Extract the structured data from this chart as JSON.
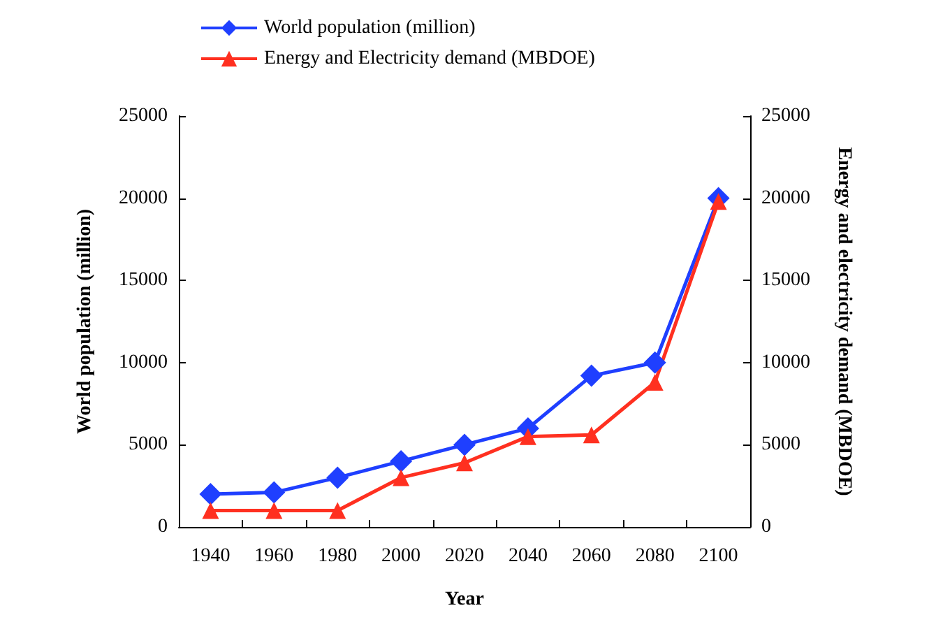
{
  "chart_data": {
    "type": "line",
    "xlabel": "Year",
    "ylabel": "World population (million)",
    "y2label": "Energy and electricity demand (MBDOE)",
    "categories": [
      "1940",
      "1960",
      "1980",
      "2000",
      "2020",
      "2040",
      "2060",
      "2080",
      "2100"
    ],
    "series": [
      {
        "name": "World population (million)",
        "color": "#1f3fff",
        "marker": "diamond",
        "values": [
          2000,
          2100,
          3000,
          4000,
          5000,
          6000,
          9200,
          10000,
          20000
        ]
      },
      {
        "name": "Energy and Electricity demand (MBDOE)",
        "color": "#ff3020",
        "marker": "triangle",
        "axis": "y2",
        "values": [
          1000,
          1000,
          1000,
          3000,
          3900,
          5500,
          5600,
          8800,
          19800
        ]
      }
    ],
    "ylim": [
      0,
      25000
    ],
    "yticks": [
      0,
      5000,
      10000,
      15000,
      20000,
      25000
    ],
    "y2lim": [
      0,
      25000
    ],
    "y2ticks": [
      0,
      5000,
      10000,
      15000,
      20000,
      25000
    ],
    "legend": "top",
    "grid": false
  }
}
